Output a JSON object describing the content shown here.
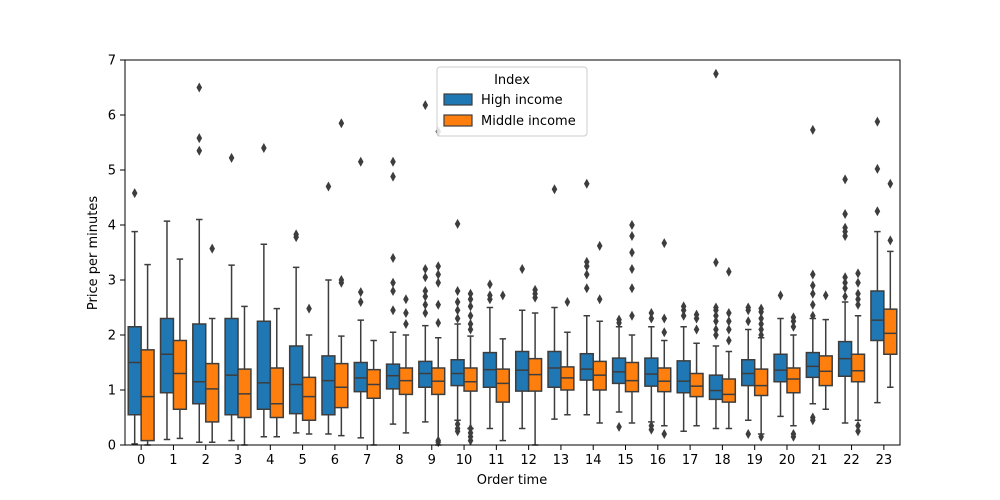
{
  "chart_data": {
    "type": "boxplot",
    "xlabel": "Order time",
    "ylabel": "Price per minutes",
    "ylim": [
      0,
      7
    ],
    "yticks": [
      0,
      1,
      2,
      3,
      4,
      5,
      6,
      7
    ],
    "categories": [
      "0",
      "1",
      "2",
      "3",
      "4",
      "5",
      "6",
      "7",
      "8",
      "9",
      "10",
      "11",
      "12",
      "13",
      "14",
      "15",
      "16",
      "17",
      "18",
      "19",
      "20",
      "21",
      "22",
      "23"
    ],
    "legend": {
      "title": "Index",
      "placement": "upper center",
      "entries": [
        "High income",
        "Middle income"
      ]
    },
    "series": [
      {
        "name": "High income",
        "color": "#1f77b4",
        "boxes": [
          {
            "wlo": 0.02,
            "q1": 0.55,
            "med": 1.5,
            "q3": 2.15,
            "whi": 3.88,
            "fliers": [
              4.58
            ]
          },
          {
            "wlo": 0.1,
            "q1": 0.95,
            "med": 1.65,
            "q3": 2.3,
            "whi": 4.07,
            "fliers": []
          },
          {
            "wlo": 0.05,
            "q1": 0.75,
            "med": 1.15,
            "q3": 2.2,
            "whi": 4.1,
            "fliers": [
              5.35,
              5.58,
              6.5
            ]
          },
          {
            "wlo": 0.08,
            "q1": 0.55,
            "med": 1.27,
            "q3": 2.3,
            "whi": 3.27,
            "fliers": [
              5.22
            ]
          },
          {
            "wlo": 0.15,
            "q1": 0.65,
            "med": 1.13,
            "q3": 2.25,
            "whi": 3.65,
            "fliers": [
              5.4
            ]
          },
          {
            "wlo": 0.22,
            "q1": 0.57,
            "med": 1.1,
            "q3": 1.8,
            "whi": 3.23,
            "fliers": [
              3.78,
              3.83
            ]
          },
          {
            "wlo": 0.2,
            "q1": 0.55,
            "med": 1.17,
            "q3": 1.62,
            "whi": 3.0,
            "fliers": [
              4.7
            ]
          },
          {
            "wlo": 0.13,
            "q1": 0.97,
            "med": 1.22,
            "q3": 1.5,
            "whi": 2.27,
            "fliers": [
              2.6,
              2.78,
              5.15
            ]
          },
          {
            "wlo": 0.38,
            "q1": 1.02,
            "med": 1.26,
            "q3": 1.47,
            "whi": 2.05,
            "fliers": [
              2.45,
              2.8,
              2.95,
              3.4,
              4.88,
              5.15
            ]
          },
          {
            "wlo": 0.42,
            "q1": 1.05,
            "med": 1.3,
            "q3": 1.52,
            "whi": 2.17,
            "fliers": [
              2.4,
              2.55,
              2.7,
              2.8,
              3.05,
              3.2,
              6.18
            ]
          },
          {
            "wlo": 0.45,
            "q1": 1.08,
            "med": 1.3,
            "q3": 1.55,
            "whi": 2.2,
            "fliers": [
              0.25,
              0.3,
              0.38,
              2.3,
              2.45,
              2.6,
              2.8,
              4.02
            ]
          },
          {
            "wlo": 0.3,
            "q1": 1.05,
            "med": 1.37,
            "q3": 1.68,
            "whi": 2.5,
            "fliers": [
              2.65,
              2.72,
              2.92
            ]
          },
          {
            "wlo": 0.3,
            "q1": 0.98,
            "med": 1.36,
            "q3": 1.7,
            "whi": 2.45,
            "fliers": [
              3.2
            ]
          },
          {
            "wlo": 0.47,
            "q1": 1.05,
            "med": 1.4,
            "q3": 1.7,
            "whi": 2.5,
            "fliers": [
              4.65
            ]
          },
          {
            "wlo": 0.55,
            "q1": 1.18,
            "med": 1.38,
            "q3": 1.66,
            "whi": 2.35,
            "fliers": [
              2.85,
              3.1,
              3.25,
              3.33,
              4.75
            ]
          },
          {
            "wlo": 0.6,
            "q1": 1.12,
            "med": 1.33,
            "q3": 1.58,
            "whi": 2.15,
            "fliers": [
              0.33,
              2.22,
              2.28
            ]
          },
          {
            "wlo": 0.42,
            "q1": 1.07,
            "med": 1.29,
            "q3": 1.58,
            "whi": 2.15,
            "fliers": [
              0.28,
              0.35,
              2.3,
              2.4
            ]
          },
          {
            "wlo": 0.25,
            "q1": 0.95,
            "med": 1.16,
            "q3": 1.53,
            "whi": 2.15,
            "fliers": [
              2.35,
              2.45,
              2.52
            ]
          },
          {
            "wlo": 0.3,
            "q1": 0.83,
            "med": 0.99,
            "q3": 1.27,
            "whi": 1.8,
            "fliers": [
              2.0,
              2.1,
              2.25,
              2.35,
              2.45,
              2.5,
              3.32,
              6.75
            ]
          },
          {
            "wlo": 0.45,
            "q1": 1.08,
            "med": 1.3,
            "q3": 1.55,
            "whi": 2.1,
            "fliers": [
              0.2,
              2.25,
              2.45,
              2.5
            ]
          },
          {
            "wlo": 0.52,
            "q1": 1.15,
            "med": 1.36,
            "q3": 1.65,
            "whi": 2.3,
            "fliers": [
              2.72
            ]
          },
          {
            "wlo": 0.75,
            "q1": 1.23,
            "med": 1.43,
            "q3": 1.68,
            "whi": 2.3,
            "fliers": [
              0.45,
              0.5,
              2.35,
              2.55,
              2.75,
              2.9,
              3.1,
              5.73
            ]
          },
          {
            "wlo": 0.4,
            "q1": 1.25,
            "med": 1.57,
            "q3": 1.88,
            "whi": 2.6,
            "fliers": [
              2.7,
              2.85,
              2.95,
              3.05,
              3.8,
              3.88,
              3.95,
              4.2,
              4.83
            ]
          },
          {
            "wlo": 0.77,
            "q1": 1.9,
            "med": 2.27,
            "q3": 2.8,
            "whi": 3.88,
            "fliers": [
              4.25,
              5.02,
              5.88
            ]
          }
        ]
      },
      {
        "name": "Middle income",
        "color": "#ff7f0e",
        "boxes": [
          {
            "wlo": 0.0,
            "q1": 0.08,
            "med": 0.88,
            "q3": 1.73,
            "whi": 3.28,
            "fliers": []
          },
          {
            "wlo": 0.12,
            "q1": 0.65,
            "med": 1.3,
            "q3": 1.9,
            "whi": 3.38,
            "fliers": []
          },
          {
            "wlo": 0.05,
            "q1": 0.42,
            "med": 1.02,
            "q3": 1.48,
            "whi": 2.3,
            "fliers": [
              3.57
            ]
          },
          {
            "wlo": 0.0,
            "q1": 0.5,
            "med": 0.93,
            "q3": 1.38,
            "whi": 2.52,
            "fliers": []
          },
          {
            "wlo": 0.15,
            "q1": 0.5,
            "med": 0.75,
            "q3": 1.4,
            "whi": 2.48,
            "fliers": []
          },
          {
            "wlo": 0.2,
            "q1": 0.45,
            "med": 0.88,
            "q3": 1.23,
            "whi": 2.0,
            "fliers": [
              2.48
            ]
          },
          {
            "wlo": 0.17,
            "q1": 0.68,
            "med": 1.05,
            "q3": 1.48,
            "whi": 1.98,
            "fliers": [
              2.95,
              3.0,
              5.85
            ]
          },
          {
            "wlo": 0.0,
            "q1": 0.85,
            "med": 1.1,
            "q3": 1.37,
            "whi": 1.9,
            "fliers": []
          },
          {
            "wlo": 0.22,
            "q1": 0.92,
            "med": 1.17,
            "q3": 1.4,
            "whi": 2.0,
            "fliers": [
              2.2,
              2.4,
              2.65
            ]
          },
          {
            "wlo": 0.0,
            "q1": 0.92,
            "med": 1.16,
            "q3": 1.4,
            "whi": 1.95,
            "fliers": [
              0.05,
              0.08,
              2.22,
              2.55,
              2.95,
              3.1,
              3.25,
              5.7
            ]
          },
          {
            "wlo": 0.3,
            "q1": 0.98,
            "med": 1.15,
            "q3": 1.4,
            "whi": 1.98,
            "fliers": [
              0.08,
              0.15,
              0.22,
              0.3,
              2.1,
              2.2,
              2.35,
              2.52,
              2.65,
              2.75
            ]
          },
          {
            "wlo": 0.08,
            "q1": 0.78,
            "med": 1.12,
            "q3": 1.38,
            "whi": 1.93,
            "fliers": [
              2.72
            ]
          },
          {
            "wlo": 0.0,
            "q1": 0.98,
            "med": 1.28,
            "q3": 1.57,
            "whi": 2.4,
            "fliers": [
              2.68,
              2.75,
              2.82
            ]
          },
          {
            "wlo": 0.55,
            "q1": 1.0,
            "med": 1.22,
            "q3": 1.42,
            "whi": 2.05,
            "fliers": [
              2.6
            ]
          },
          {
            "wlo": 0.4,
            "q1": 1.0,
            "med": 1.27,
            "q3": 1.52,
            "whi": 2.25,
            "fliers": [
              2.65,
              3.62
            ]
          },
          {
            "wlo": 0.4,
            "q1": 0.97,
            "med": 1.17,
            "q3": 1.5,
            "whi": 2.0,
            "fliers": [
              2.35,
              2.85,
              3.2,
              3.5,
              3.8,
              4.0
            ]
          },
          {
            "wlo": 0.35,
            "q1": 0.97,
            "med": 1.16,
            "q3": 1.4,
            "whi": 1.9,
            "fliers": [
              0.2,
              2.05,
              2.3,
              3.67
            ]
          },
          {
            "wlo": 0.35,
            "q1": 0.88,
            "med": 1.07,
            "q3": 1.3,
            "whi": 1.85,
            "fliers": [
              2.1,
              2.3,
              2.37
            ]
          },
          {
            "wlo": 0.3,
            "q1": 0.78,
            "med": 0.92,
            "q3": 1.2,
            "whi": 1.7,
            "fliers": [
              1.9,
              2.1,
              2.25,
              2.4,
              3.15
            ]
          },
          {
            "wlo": 0.2,
            "q1": 0.9,
            "med": 1.08,
            "q3": 1.38,
            "whi": 1.95,
            "fliers": [
              0.15,
              2.0,
              2.1,
              2.2,
              2.3,
              2.42,
              2.48
            ]
          },
          {
            "wlo": 0.35,
            "q1": 0.95,
            "med": 1.2,
            "q3": 1.4,
            "whi": 2.0,
            "fliers": [
              0.15,
              0.2,
              2.15,
              2.25,
              2.32
            ]
          },
          {
            "wlo": 0.65,
            "q1": 1.08,
            "med": 1.34,
            "q3": 1.62,
            "whi": 2.28,
            "fliers": [
              2.72
            ]
          },
          {
            "wlo": 0.45,
            "q1": 1.15,
            "med": 1.35,
            "q3": 1.65,
            "whi": 2.35,
            "fliers": [
              0.25,
              0.35,
              2.55,
              2.65,
              2.75,
              2.95,
              3.12
            ]
          },
          {
            "wlo": 1.05,
            "q1": 1.65,
            "med": 2.03,
            "q3": 2.47,
            "whi": 3.52,
            "fliers": [
              3.72,
              4.75
            ]
          }
        ]
      }
    ]
  }
}
